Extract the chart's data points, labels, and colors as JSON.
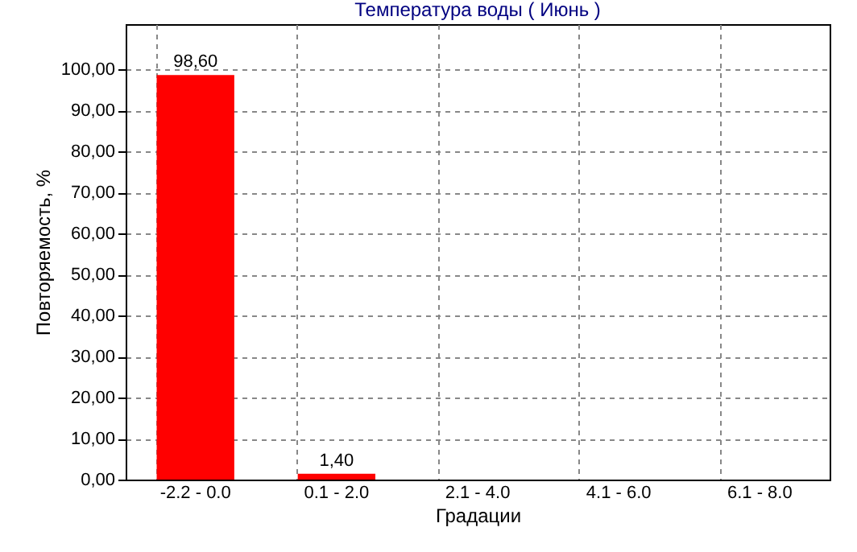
{
  "chart_data": {
    "type": "bar",
    "title": "Температура воды    ( Июнь )",
    "xlabel": "Градации",
    "ylabel": "Повторяемость, %",
    "categories": [
      "-2.2 - 0.0",
      "0.1 - 2.0",
      "2.1 - 4.0",
      "4.1 - 6.0",
      "6.1 - 8.0"
    ],
    "values": [
      98.6,
      1.4,
      0,
      0,
      0
    ],
    "value_labels": [
      "98,60",
      "1,40",
      null,
      null,
      null
    ],
    "color": "#ff0000",
    "ylim": [
      0,
      111
    ],
    "yticks": [
      {
        "value": 0,
        "label": "0,00"
      },
      {
        "value": 10,
        "label": "10,00"
      },
      {
        "value": 20,
        "label": "20,00"
      },
      {
        "value": 30,
        "label": "30,00"
      },
      {
        "value": 40,
        "label": "40,00"
      },
      {
        "value": 50,
        "label": "50,00"
      },
      {
        "value": 60,
        "label": "60,00"
      },
      {
        "value": 70,
        "label": "70,00"
      },
      {
        "value": 80,
        "label": "80,00"
      },
      {
        "value": 90,
        "label": "90,00"
      },
      {
        "value": 100,
        "label": "100,00"
      }
    ],
    "grid": true,
    "line_style": "dashed"
  }
}
